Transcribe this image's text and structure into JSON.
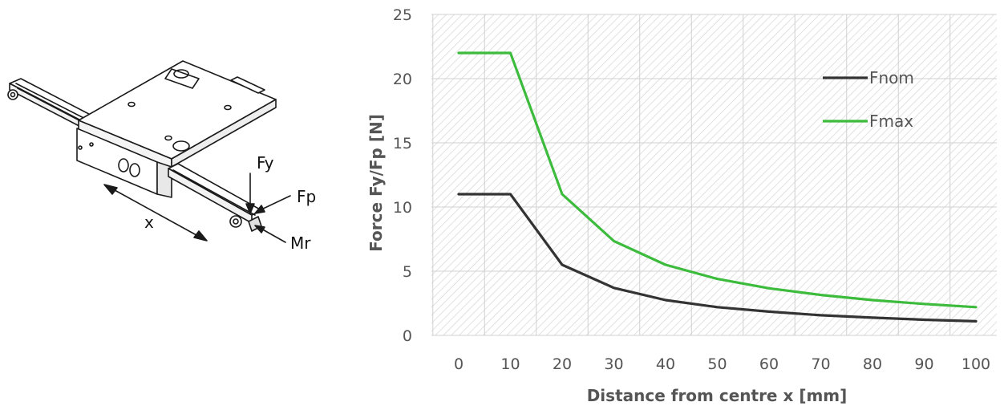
{
  "colors": {
    "Fnom": "#333333",
    "Fmax": "#3dbb3d",
    "grid": "#d0d0d0",
    "hatch": "#d4d4d4",
    "tick": "#555555"
  },
  "diagram": {
    "labels": {
      "fy": "Fy",
      "fp": "Fp",
      "mr": "Mr",
      "x": "x"
    }
  },
  "chart_data": {
    "type": "line",
    "title": "",
    "xlabel": "Distance from centre x [mm]",
    "ylabel": "Force Fy/Fp [N]",
    "x": [
      0,
      10,
      20,
      30,
      40,
      50,
      60,
      70,
      80,
      90,
      100
    ],
    "xlim": [
      0,
      100
    ],
    "ylim": [
      0,
      25
    ],
    "xticks": [
      "0",
      "10",
      "20",
      "30",
      "40",
      "50",
      "60",
      "70",
      "80",
      "90",
      "100"
    ],
    "yticks": [
      "0",
      "5",
      "10",
      "15",
      "20",
      "25"
    ],
    "grid": true,
    "legend_position": "top-right",
    "series": [
      {
        "name": "Fnom",
        "values": [
          11,
          11,
          5.5,
          3.7,
          2.75,
          2.2,
          1.85,
          1.57,
          1.38,
          1.22,
          1.1
        ]
      },
      {
        "name": "Fmax",
        "values": [
          22,
          22,
          11,
          7.35,
          5.5,
          4.4,
          3.67,
          3.15,
          2.75,
          2.45,
          2.2
        ]
      }
    ]
  }
}
